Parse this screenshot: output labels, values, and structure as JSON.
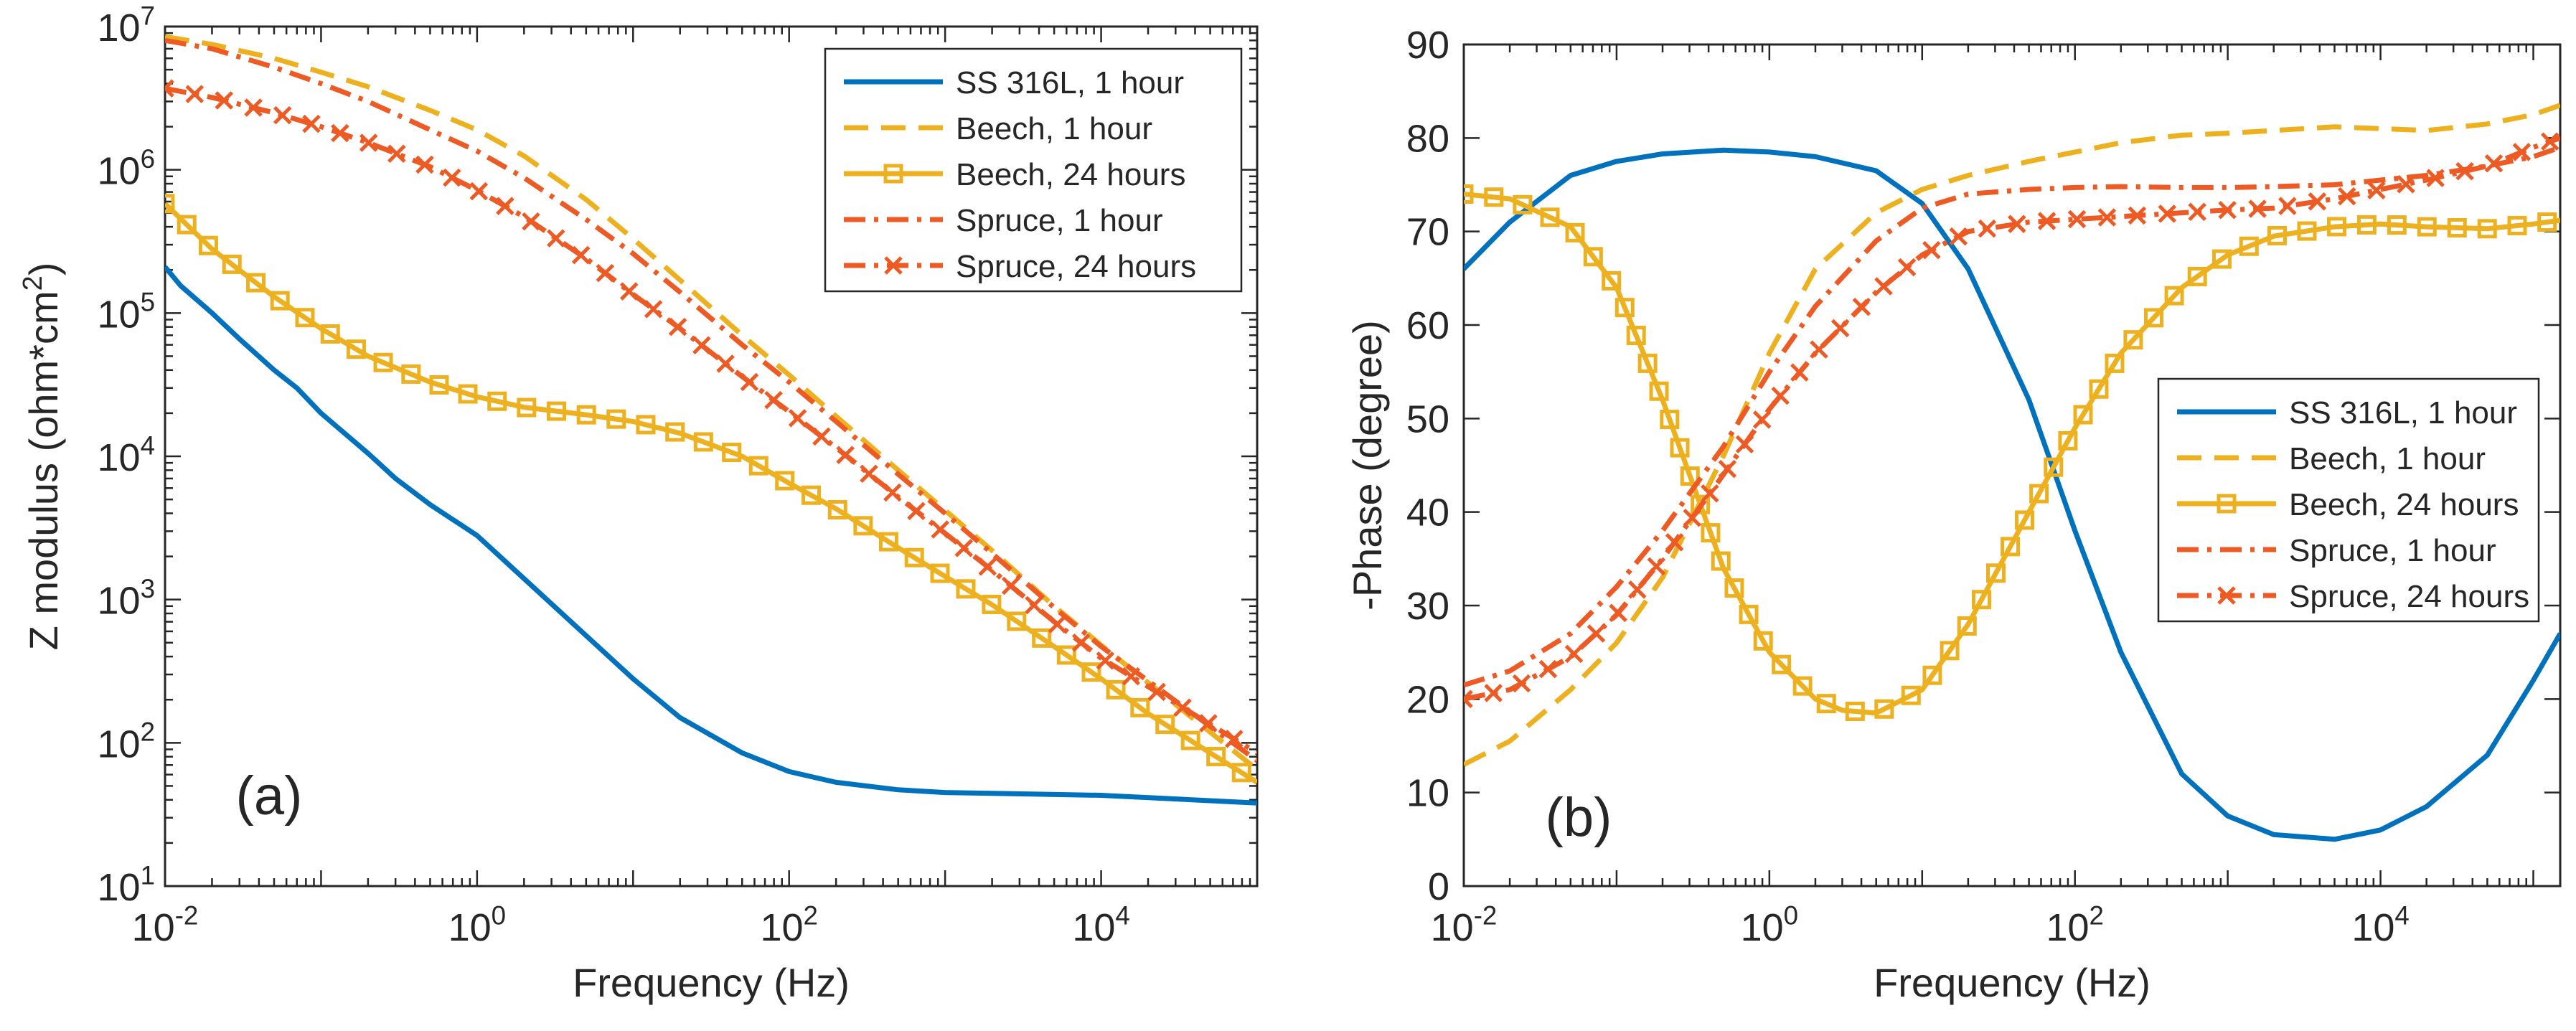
{
  "chart_data": [
    {
      "type": "line",
      "panel_label": "(a)",
      "xlabel": "Frequency (Hz)",
      "ylabel": "Z modulus (ohm*cm",
      "ylabel_sup": "2",
      "ylabel_end": ")",
      "x_scale": "log",
      "y_scale": "log",
      "xlim": [
        0.01,
        100000
      ],
      "ylim": [
        10,
        10000000
      ],
      "x_ticks": [
        {
          "base": "10",
          "exp": "-2"
        },
        {
          "base": "10",
          "exp": "0"
        },
        {
          "base": "10",
          "exp": "2"
        },
        {
          "base": "10",
          "exp": "4"
        }
      ],
      "y_ticks": [
        {
          "base": "10",
          "exp": "1"
        },
        {
          "base": "10",
          "exp": "2"
        },
        {
          "base": "10",
          "exp": "3"
        },
        {
          "base": "10",
          "exp": "4"
        },
        {
          "base": "10",
          "exp": "5"
        },
        {
          "base": "10",
          "exp": "6"
        },
        {
          "base": "10",
          "exp": "7"
        }
      ],
      "legend_position": "top-right",
      "series": [
        {
          "name": "SS 316L, 1 hour",
          "color": "#0072BD",
          "style": "solid",
          "marker": "none",
          "x": [
            0.01,
            0.0126,
            0.02,
            0.03,
            0.05,
            0.07,
            0.1,
            0.2,
            0.3,
            0.5,
            1,
            2,
            5,
            10,
            20,
            50,
            100,
            200,
            500,
            1000,
            10000,
            100000
          ],
          "y": [
            210000,
            155000,
            100000,
            66000,
            40000,
            30000,
            20000,
            10500,
            7000,
            4600,
            2800,
            1400,
            560,
            280,
            150,
            85,
            63,
            53,
            47,
            45,
            43,
            38
          ]
        },
        {
          "name": "Beech, 1 hour",
          "color": "#EDB120",
          "style": "dashed",
          "marker": "none",
          "x": [
            0.01,
            0.02,
            0.05,
            0.1,
            0.2,
            0.5,
            1,
            2,
            5,
            10,
            20,
            50,
            100,
            200,
            500,
            1000,
            2000,
            5000,
            10000,
            100000
          ],
          "y": [
            8500000,
            7500000,
            6000000,
            4800000,
            3800000,
            2600000,
            1900000,
            1250000,
            620000,
            330000,
            170000,
            70000,
            37000,
            19000,
            8000,
            4200,
            2200,
            900,
            480,
            65
          ]
        },
        {
          "name": "Beech, 24 hours",
          "color": "#EDB120",
          "style": "solid",
          "marker": "square",
          "x": [
            0.01,
            0.02,
            0.05,
            0.1,
            0.2,
            0.5,
            1,
            2,
            5,
            10,
            20,
            50,
            100,
            200,
            500,
            1000,
            2000,
            5000,
            10000,
            20000,
            50000,
            100000
          ],
          "y": [
            580000,
            280000,
            130000,
            78000,
            50000,
            33000,
            26000,
            22000,
            19500,
            17500,
            14500,
            10000,
            6500,
            4300,
            2300,
            1450,
            920,
            470,
            280,
            160,
            85,
            53
          ]
        },
        {
          "name": "Spruce, 1 hour",
          "color": "#EE5A24",
          "style": "dashdot",
          "marker": "none",
          "x": [
            0.01,
            0.02,
            0.05,
            0.1,
            0.2,
            0.5,
            1,
            2,
            5,
            10,
            20,
            50,
            100,
            200,
            500,
            1000,
            2000,
            5000,
            10000,
            100000
          ],
          "y": [
            8000000,
            7000000,
            5200000,
            4000000,
            3000000,
            1900000,
            1350000,
            880000,
            450000,
            260000,
            140000,
            60000,
            33000,
            17500,
            7500,
            4000,
            2100,
            880,
            470,
            75
          ]
        },
        {
          "name": "Spruce, 24 hours",
          "color": "#EE5A24",
          "style": "dashdot",
          "marker": "x",
          "x": [
            0.01,
            0.02,
            0.05,
            0.1,
            0.2,
            0.5,
            1,
            2,
            5,
            10,
            20,
            50,
            100,
            200,
            500,
            1000,
            2000,
            5000,
            10000,
            100000
          ],
          "y": [
            3700000,
            3200000,
            2500000,
            2000000,
            1550000,
            1050000,
            720000,
            470000,
            240000,
            135000,
            78000,
            36000,
            20500,
            11500,
            5200,
            2900,
            1600,
            700,
            390,
            85
          ]
        }
      ]
    },
    {
      "type": "line",
      "panel_label": "(b)",
      "xlabel": "Frequency (Hz)",
      "ylabel": "-Phase (degree)",
      "x_scale": "log",
      "y_scale": "linear",
      "xlim": [
        0.01,
        150000
      ],
      "ylim": [
        0,
        90
      ],
      "x_ticks": [
        {
          "base": "10",
          "exp": "-2"
        },
        {
          "base": "10",
          "exp": "0"
        },
        {
          "base": "10",
          "exp": "2"
        },
        {
          "base": "10",
          "exp": "4"
        }
      ],
      "y_ticks": [
        "0",
        "10",
        "20",
        "30",
        "40",
        "50",
        "60",
        "70",
        "80",
        "90"
      ],
      "legend_position": "center-right",
      "series": [
        {
          "name": "SS 316L, 1 hour",
          "color": "#0072BD",
          "style": "solid",
          "marker": "none",
          "x": [
            0.01,
            0.02,
            0.05,
            0.1,
            0.2,
            0.5,
            1,
            2,
            5,
            10,
            20,
            50,
            100,
            200,
            500,
            1000,
            2000,
            5000,
            10000,
            20000,
            50000,
            100000,
            150000
          ],
          "y": [
            66,
            71,
            76,
            77.5,
            78.3,
            78.7,
            78.5,
            78,
            76.5,
            73,
            66,
            52,
            38,
            25,
            12,
            7.5,
            5.5,
            5,
            6,
            8.5,
            14,
            22,
            27
          ]
        },
        {
          "name": "Beech, 1 hour",
          "color": "#EDB120",
          "style": "dashed",
          "marker": "none",
          "x": [
            0.01,
            0.02,
            0.05,
            0.1,
            0.2,
            0.5,
            1,
            2,
            5,
            10,
            20,
            50,
            100,
            200,
            500,
            1000,
            2000,
            5000,
            10000,
            20000,
            50000,
            100000,
            150000
          ],
          "y": [
            13,
            15.5,
            21,
            26,
            33,
            46,
            57,
            66,
            72,
            74.5,
            76,
            77.5,
            78.5,
            79.5,
            80.3,
            80.5,
            80.8,
            81.2,
            81,
            80.8,
            81.5,
            82.5,
            83.5
          ]
        },
        {
          "name": "Beech, 24 hours",
          "color": "#EDB120",
          "style": "solid",
          "marker": "square",
          "x": [
            0.01,
            0.02,
            0.05,
            0.1,
            0.2,
            0.3,
            0.5,
            1,
            2,
            3,
            5,
            10,
            20,
            50,
            100,
            200,
            500,
            1000,
            2000,
            5000,
            10000,
            20000,
            50000,
            100000,
            150000
          ],
          "y": [
            74,
            73.5,
            70.5,
            64,
            52,
            44,
            34,
            25,
            20,
            18.8,
            18.5,
            21,
            28,
            40,
            49,
            57,
            64,
            67.5,
            69.5,
            70.5,
            70.8,
            70.5,
            70.3,
            70.8,
            71.2
          ]
        },
        {
          "name": "Spruce, 1 hour",
          "color": "#EE5A24",
          "style": "dashdot",
          "marker": "none",
          "x": [
            0.01,
            0.02,
            0.05,
            0.1,
            0.2,
            0.5,
            1,
            2,
            5,
            10,
            20,
            50,
            100,
            200,
            500,
            1000,
            2000,
            5000,
            10000,
            20000,
            50000,
            100000,
            150000
          ],
          "y": [
            21.5,
            23,
            27,
            32,
            38,
            47,
            55,
            62,
            69,
            72.5,
            74,
            74.5,
            74.7,
            74.8,
            74.7,
            74.7,
            74.8,
            75,
            75.5,
            76,
            77,
            78,
            79
          ]
        },
        {
          "name": "Spruce, 24 hours",
          "color": "#EE5A24",
          "style": "dashdot",
          "marker": "x",
          "x": [
            0.01,
            0.02,
            0.05,
            0.1,
            0.2,
            0.5,
            1,
            2,
            5,
            10,
            20,
            50,
            100,
            200,
            500,
            1000,
            2000,
            5000,
            10000,
            20000,
            50000,
            100000,
            150000
          ],
          "y": [
            20,
            21,
            24.5,
            29,
            35,
            44,
            51,
            57,
            63.5,
            67.5,
            70,
            71,
            71.3,
            71.6,
            72,
            72.3,
            72.5,
            73.5,
            74.5,
            75.5,
            77,
            79,
            80
          ]
        }
      ]
    }
  ]
}
